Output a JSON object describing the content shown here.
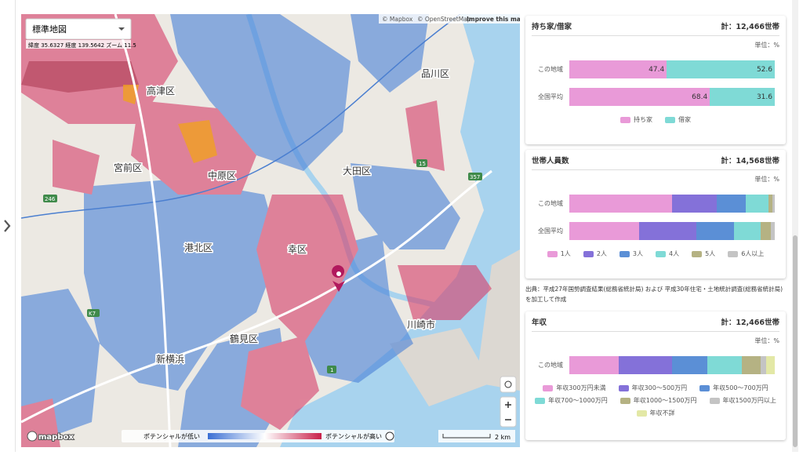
{
  "map": {
    "style_selector": "標準地図",
    "coords": "緯度 35.6327 経度 139.5642 ズーム 11.5",
    "attribution": [
      "© Mapbox",
      "© OpenStreetMap",
      "Improve this map"
    ],
    "labels": [
      "品川区",
      "高津区",
      "宮前区",
      "中原区",
      "大田区",
      "港北区",
      "幸区",
      "鶴見区",
      "川崎市",
      "新横浜"
    ],
    "road_numbers": [
      "246",
      "15",
      "357",
      "1",
      "K7"
    ],
    "legend_low": "ポテンシャルが低い",
    "legend_high": "ポテンシャルが高い",
    "scale": "2 km",
    "logo": "mapbox"
  },
  "panels": [
    {
      "title": "持ち家/借家",
      "total": "計：12,466世帯",
      "unit": "単位：%",
      "xlim": [
        0,
        100
      ],
      "show_values": true,
      "categories": [
        "この地域",
        "全国平均"
      ],
      "series": [
        {
          "name": "持ち家",
          "color": "#e99ad8",
          "values": [
            47.4,
            68.4
          ]
        },
        {
          "name": "借家",
          "color": "#7fdad6",
          "values": [
            52.6,
            31.6
          ]
        }
      ]
    },
    {
      "title": "世帯人員数",
      "total": "計：14,568世帯",
      "unit": "単位：%",
      "xlim": [
        0,
        100
      ],
      "show_values": false,
      "categories": [
        "この地域",
        "全国平均"
      ],
      "series": [
        {
          "name": "1人",
          "color": "#e99ad8",
          "values": [
            50,
            34
          ]
        },
        {
          "name": "2人",
          "color": "#8471d9",
          "values": [
            22,
            28
          ]
        },
        {
          "name": "3人",
          "color": "#5b8fd6",
          "values": [
            14,
            18
          ]
        },
        {
          "name": "4人",
          "color": "#7fdad6",
          "values": [
            11,
            13
          ]
        },
        {
          "name": "5人",
          "color": "#b5b283",
          "values": [
            2,
            5
          ]
        },
        {
          "name": "6人以上",
          "color": "#c4c4c4",
          "values": [
            1,
            2
          ]
        }
      ]
    },
    {
      "title": "年収",
      "total": "計：12,466世帯",
      "unit": "単位：%",
      "xlim": [
        0,
        100
      ],
      "show_values": false,
      "categories": [
        "この地域"
      ],
      "series": [
        {
          "name": "年収300万円未満",
          "color": "#e99ad8",
          "values": [
            24
          ]
        },
        {
          "name": "年収300～500万円",
          "color": "#8471d9",
          "values": [
            26
          ]
        },
        {
          "name": "年収500～700万円",
          "color": "#5b8fd6",
          "values": [
            17
          ]
        },
        {
          "name": "年収700～1000万円",
          "color": "#7fdad6",
          "values": [
            17
          ]
        },
        {
          "name": "年収1000～1500万円",
          "color": "#b5b283",
          "values": [
            9
          ]
        },
        {
          "name": "年収1500万円以上",
          "color": "#c4c4c4",
          "values": [
            3
          ]
        },
        {
          "name": "年収不詳",
          "color": "#e3e8a6",
          "values": [
            4
          ]
        }
      ]
    }
  ],
  "source": "出典：平成27年国勢調査結果(総務省統計局) および 平成30年住宅・土地統計調査(総務省統計局) を加工して作成"
}
